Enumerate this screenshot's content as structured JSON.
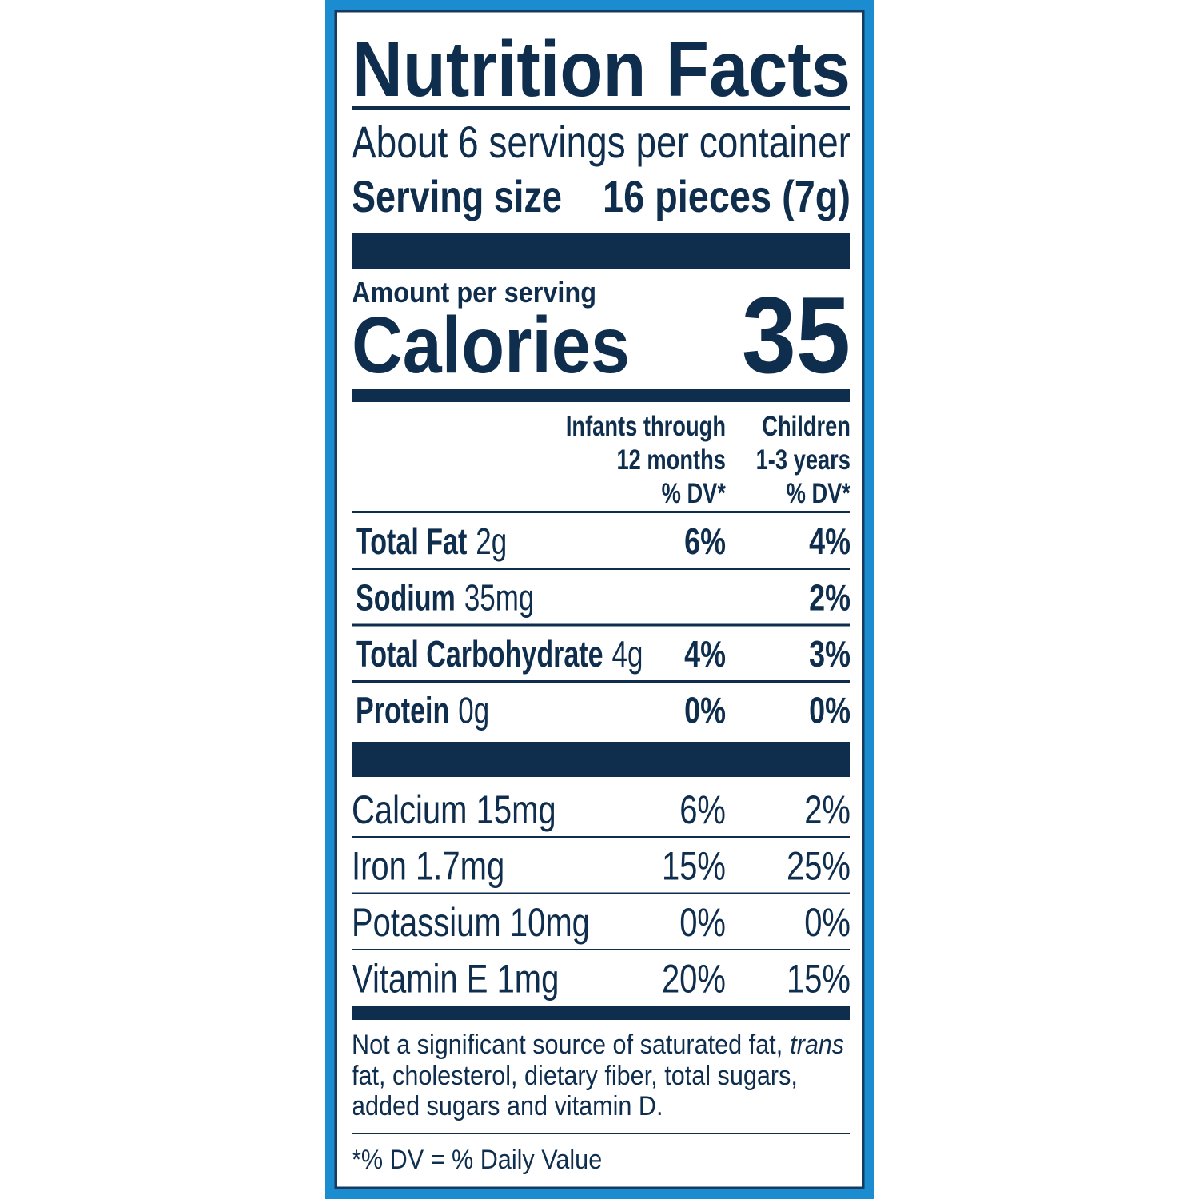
{
  "label": {
    "title": "Nutrition Facts",
    "servings": "About 6 servings per container",
    "serving_size": {
      "label": "Serving size",
      "value": "16 pieces (7g)"
    },
    "amount_per_serving": "Amount per serving",
    "calories": {
      "label": "Calories",
      "value": "35"
    },
    "columns": [
      [
        "Infants through",
        "12 months",
        "% DV*"
      ],
      [
        "Children",
        "1-3 years",
        "% DV*"
      ]
    ],
    "nutrients": [
      {
        "name": "Total Fat",
        "amount": "2g",
        "infants": "6%",
        "children": "4%"
      },
      {
        "name": "Sodium",
        "amount": "35mg",
        "infants": null,
        "children": "2%"
      },
      {
        "name": "Total Carbohydrate",
        "amount": "4g",
        "infants": "4%",
        "children": "3%"
      },
      {
        "name": "Protein",
        "amount": "0g",
        "infants": "0%",
        "children": "0%"
      }
    ],
    "vitamins": [
      {
        "name": "Calcium 15mg",
        "infants": "6%",
        "children": "2%"
      },
      {
        "name": "Iron 1.7mg",
        "infants": "15%",
        "children": "25%"
      },
      {
        "name": "Potassium 10mg",
        "infants": "0%",
        "children": "0%"
      },
      {
        "name": "Vitamin E 1mg",
        "infants": "20%",
        "children": "15%"
      }
    ],
    "footnote": {
      "line1": "Not a significant source of saturated fat,",
      "italic": "trans",
      "line2": "fat, cholesterol, dietary fiber, total sugars,",
      "line3": "added sugars and vitamin D."
    },
    "dv_note": "*% DV = % Daily Value"
  }
}
